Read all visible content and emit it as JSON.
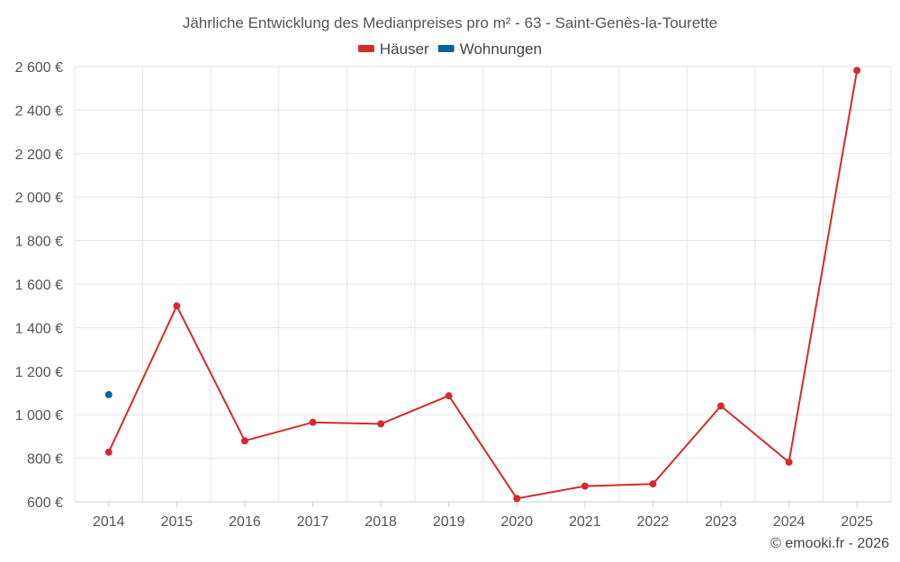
{
  "chart_data": {
    "type": "line",
    "title": "Jährliche Entwicklung des Medianpreises pro m² - 63 - Saint-Genès-la-Tourette",
    "categories": [
      "2014",
      "2015",
      "2016",
      "2017",
      "2018",
      "2019",
      "2020",
      "2021",
      "2022",
      "2023",
      "2024",
      "2025"
    ],
    "series": [
      {
        "name": "Häuser",
        "color": "#d62a2a",
        "values": [
          828,
          1500,
          880,
          965,
          958,
          1087,
          615,
          672,
          682,
          1040,
          782,
          2582
        ]
      },
      {
        "name": "Wohnungen",
        "color": "#0b62a0",
        "values": [
          1092,
          null,
          null,
          null,
          null,
          null,
          null,
          null,
          null,
          null,
          null,
          null
        ]
      }
    ],
    "ylim": [
      600,
      2600
    ],
    "yticks": [
      600,
      800,
      1000,
      1200,
      1400,
      1600,
      1800,
      2000,
      2200,
      2400,
      2600
    ],
    "ytick_labels": [
      "600 €",
      "800 €",
      "1 000 €",
      "1 200 €",
      "1 400 €",
      "1 600 €",
      "1 800 €",
      "2 000 €",
      "2 200 €",
      "2 400 €",
      "2 600 €"
    ],
    "xlabel": "",
    "ylabel": "",
    "grid": true,
    "legend": "top-center"
  },
  "credit": "© emooki.fr - 2026"
}
